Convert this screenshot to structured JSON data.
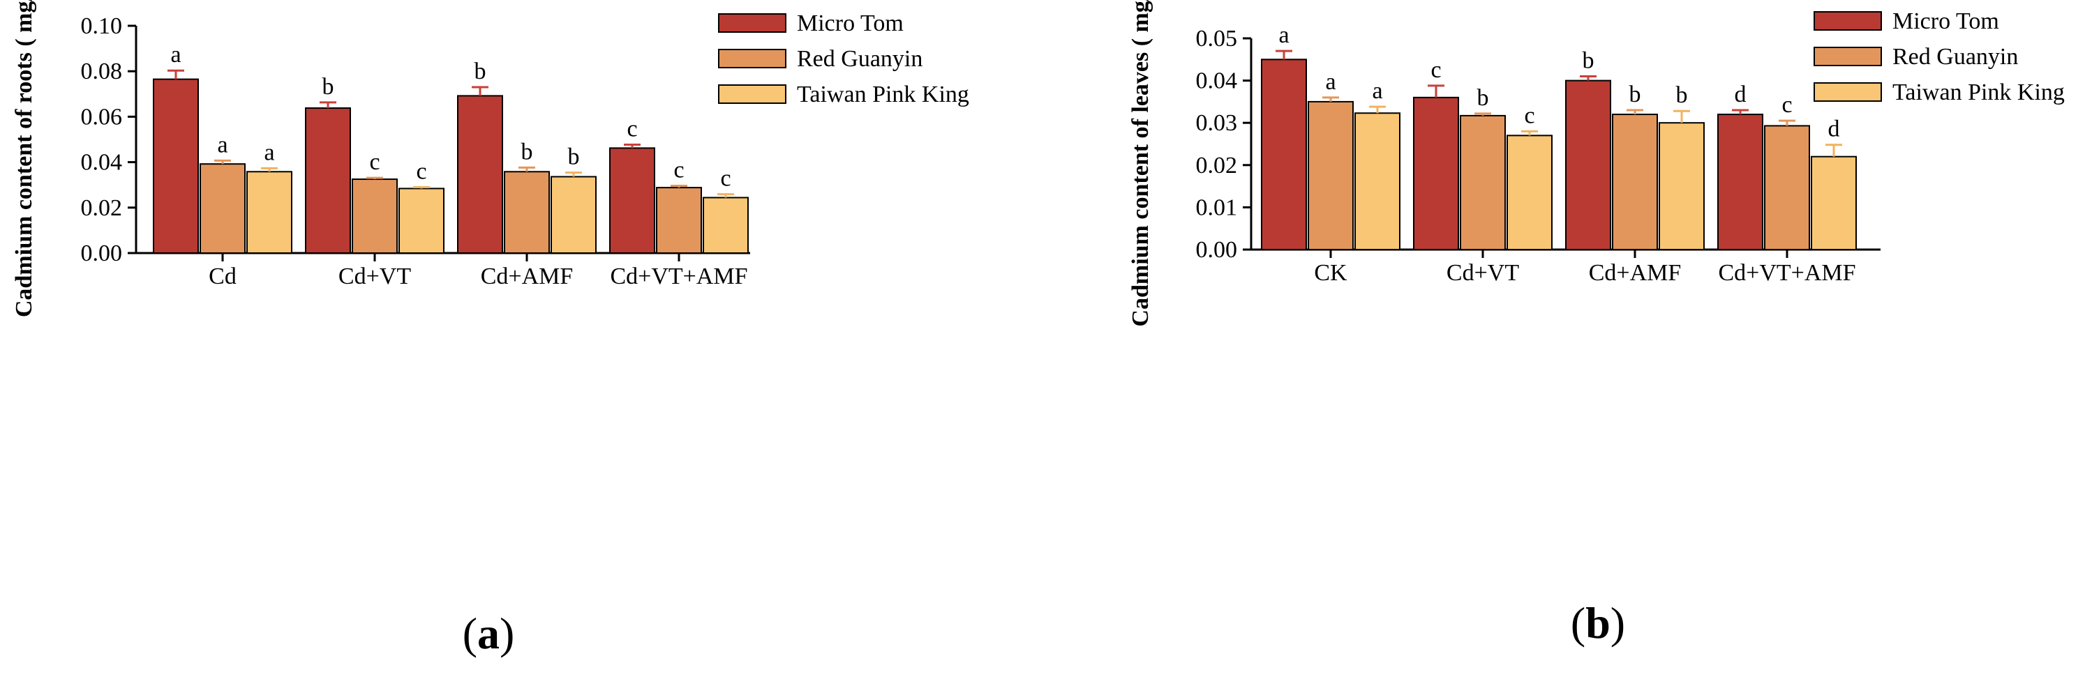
{
  "chart_data": [
    {
      "type": "bar",
      "panel_label": "(a)",
      "panel_letter": "a",
      "title": "",
      "xlabel": "",
      "ylabel": "Cadmium content of roots ( mg/kg)",
      "ylim": [
        0,
        0.1
      ],
      "yticks": [
        "0.00",
        "0.02",
        "0.04",
        "0.06",
        "0.08",
        "0.10"
      ],
      "categories": [
        "Cd",
        "Cd+VT",
        "Cd+AMF",
        "Cd+VT+AMF"
      ],
      "legend_position": "top-right",
      "series": [
        {
          "name": "Micro Tom",
          "color": "#b83a32",
          "errcolor": "#c8413a",
          "values": [
            0.0765,
            0.0638,
            0.0692,
            0.0462
          ],
          "errors": [
            0.0038,
            0.0025,
            0.0038,
            0.0015
          ],
          "letters": [
            "a",
            "b",
            "b",
            "c"
          ]
        },
        {
          "name": "Red Guanyin",
          "color": "#e3965b",
          "errcolor": "#e3965b",
          "values": [
            0.0392,
            0.0325,
            0.0358,
            0.0288
          ],
          "errors": [
            0.0015,
            0.0006,
            0.0018,
            0.0008
          ],
          "letters": [
            "a",
            "c",
            "b",
            "c"
          ]
        },
        {
          "name": "Taiwan Pink King",
          "color": "#f8c675",
          "errcolor": "#f2b25f",
          "values": [
            0.0358,
            0.0284,
            0.0336,
            0.0244
          ],
          "errors": [
            0.0015,
            0.0006,
            0.0018,
            0.0015
          ],
          "letters": [
            "a",
            "c",
            "b",
            "c"
          ]
        }
      ]
    },
    {
      "type": "bar",
      "panel_label": "(b)",
      "panel_letter": "b",
      "title": "",
      "xlabel": "",
      "ylabel": "Cadmium content of leaves ( mg/kg)",
      "ylim": [
        0,
        0.05
      ],
      "yticks": [
        "0.00",
        "0.01",
        "0.02",
        "0.03",
        "0.04",
        "0.05"
      ],
      "categories": [
        "CK",
        "Cd+VT",
        "Cd+AMF",
        "Cd+VT+AMF"
      ],
      "legend_position": "top-right",
      "series": [
        {
          "name": "Micro Tom",
          "color": "#b83a32",
          "errcolor": "#c8413a",
          "values": [
            0.045,
            0.036,
            0.04,
            0.032
          ],
          "errors": [
            0.002,
            0.0028,
            0.001,
            0.001
          ],
          "letters": [
            "a",
            "c",
            "b",
            "d"
          ]
        },
        {
          "name": "Red Guanyin",
          "color": "#e3965b",
          "errcolor": "#e3965b",
          "values": [
            0.035,
            0.0317,
            0.032,
            0.0293
          ],
          "errors": [
            0.001,
            0.0005,
            0.001,
            0.0012
          ],
          "letters": [
            "a",
            "b",
            "b",
            "c"
          ]
        },
        {
          "name": "Taiwan Pink King",
          "color": "#f8c675",
          "errcolor": "#f2b25f",
          "values": [
            0.0323,
            0.027,
            0.03,
            0.022
          ],
          "errors": [
            0.0015,
            0.001,
            0.0028,
            0.0028
          ],
          "letters": [
            "a",
            "c",
            "b",
            "d"
          ]
        }
      ]
    }
  ]
}
